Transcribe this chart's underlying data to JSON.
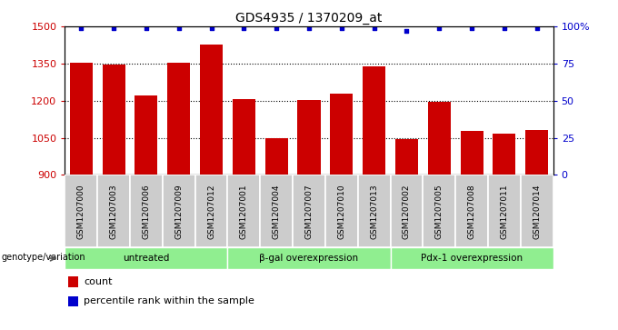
{
  "title": "GDS4935 / 1370209_at",
  "samples": [
    "GSM1207000",
    "GSM1207003",
    "GSM1207006",
    "GSM1207009",
    "GSM1207012",
    "GSM1207001",
    "GSM1207004",
    "GSM1207007",
    "GSM1207010",
    "GSM1207013",
    "GSM1207002",
    "GSM1207005",
    "GSM1207008",
    "GSM1207011",
    "GSM1207014"
  ],
  "counts": [
    1353,
    1345,
    1222,
    1352,
    1425,
    1207,
    1047,
    1203,
    1230,
    1338,
    1045,
    1197,
    1077,
    1068,
    1082
  ],
  "percentiles": [
    99,
    99,
    99,
    99,
    99,
    99,
    99,
    99,
    99,
    99,
    97,
    99,
    99,
    99,
    99
  ],
  "groups": [
    {
      "label": "untreated",
      "start": 0,
      "end": 5,
      "color": "#aaddaa"
    },
    {
      "label": "β-gal overexpression",
      "start": 5,
      "end": 10,
      "color": "#aaddaa"
    },
    {
      "label": "Pdx-1 overexpression",
      "start": 10,
      "end": 15,
      "color": "#55cc55"
    }
  ],
  "bar_color": "#cc0000",
  "dot_color": "#0000cc",
  "ylim_left": [
    900,
    1500
  ],
  "ylim_right": [
    0,
    100
  ],
  "yticks_left": [
    900,
    1050,
    1200,
    1350,
    1500
  ],
  "yticks_right": [
    0,
    25,
    50,
    75,
    100
  ],
  "grid_values": [
    1050,
    1200,
    1350
  ],
  "xlabel_genotype": "genotype/variation",
  "legend_count": "count",
  "legend_percentile": "percentile rank within the sample",
  "sample_bg": "#cccccc",
  "group_color": "#90EE90"
}
